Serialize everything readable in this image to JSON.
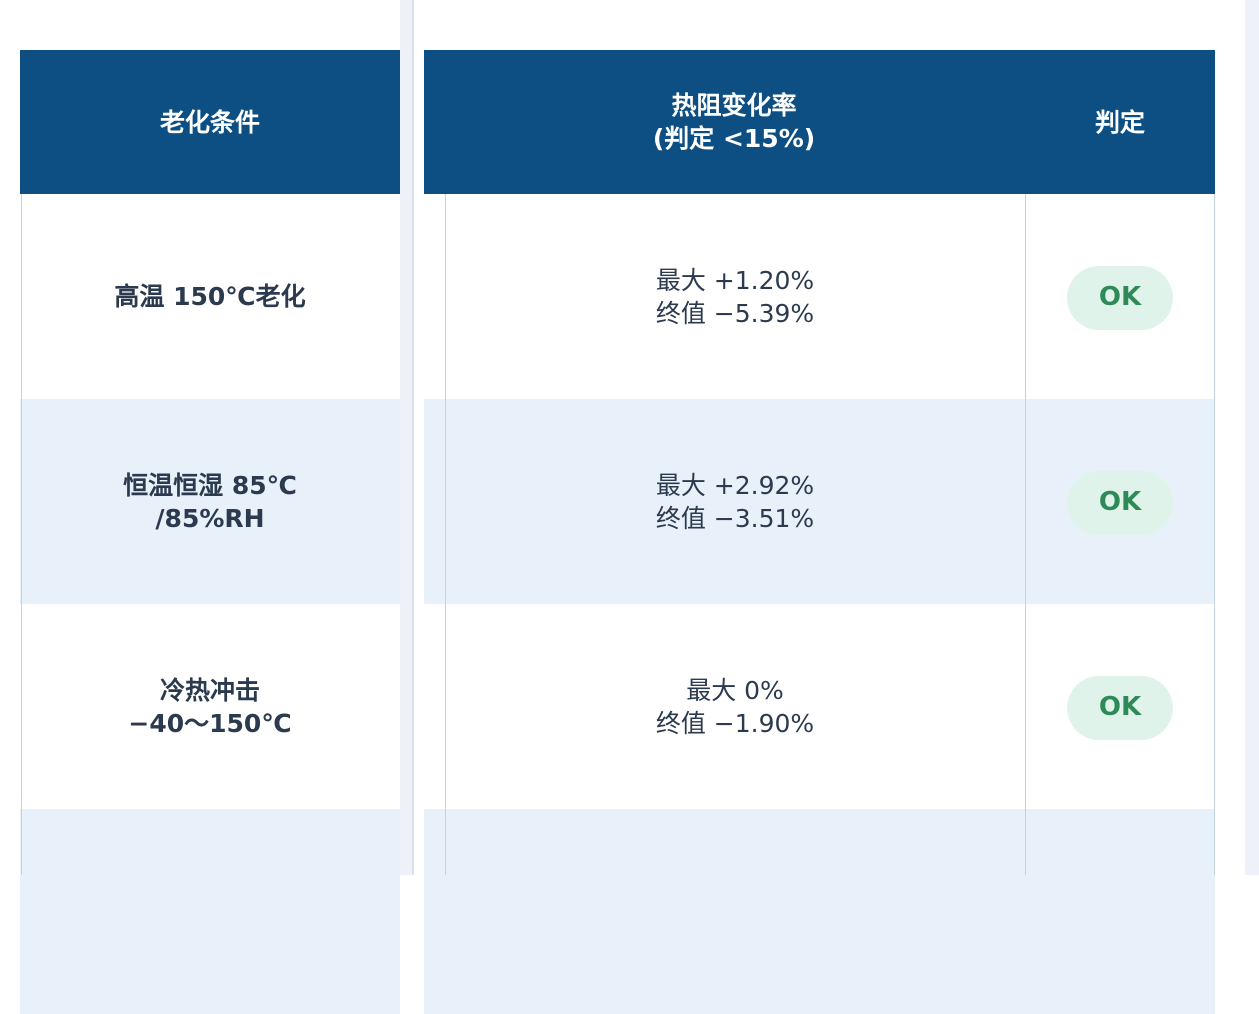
{
  "left_table": {
    "header": "老化条件",
    "rows": [
      [
        "高温 150℃老化"
      ],
      [
        "恒温恒湿 85℃",
        "/85%RH"
      ],
      [
        "冷热冲击",
        "−40～150℃"
      ]
    ]
  },
  "right_table": {
    "header": {
      "change_rate": [
        "热阻变化率",
        "(判定 <15%)"
      ],
      "judgement": "判定"
    },
    "rows": [
      {
        "change_rate": [
          "最大 +1.20%",
          "终值 −5.39%"
        ],
        "judgement": "OK"
      },
      {
        "change_rate": [
          "最大 +2.92%",
          "终值 −3.51%"
        ],
        "judgement": "OK"
      },
      {
        "change_rate": [
          "最大 0%",
          "终值 −1.90%"
        ],
        "judgement": "OK"
      }
    ]
  }
}
